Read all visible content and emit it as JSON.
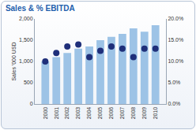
{
  "chart_data": {
    "type": "bar",
    "title": "Sales & % EBITDA",
    "y_label": "Sales '000 USD",
    "categories": [
      "2000",
      "2001",
      "2002",
      "2003",
      "2004",
      "2005",
      "2006",
      "2007",
      "2008",
      "2009",
      "2010"
    ],
    "series": [
      {
        "type": "bar",
        "color": "#9dc3e6",
        "values": [
          1000,
          1100,
          1200,
          1300,
          1350,
          1500,
          1580,
          1650,
          1780,
          1700,
          1850
        ]
      },
      {
        "type": "scatter",
        "axis": "y2",
        "marker": "circle",
        "color": "#1f2f7a",
        "values": [
          10,
          12,
          13.5,
          14,
          11,
          12.5,
          13.5,
          13,
          11,
          13,
          13
        ]
      }
    ],
    "ylim": [
      0,
      2000
    ],
    "yticks": [
      0,
      500,
      {
        "value": 1000,
        "label": "1,000"
      },
      {
        "value": 1500,
        "label": "1,500"
      },
      {
        "value": 2000,
        "label": "2,000"
      }
    ],
    "y2lim": [
      0,
      20
    ],
    "y2ticks": [
      {
        "value": 0,
        "label": "0.0%"
      },
      {
        "value": 5,
        "label": "5.0%"
      },
      {
        "value": 10,
        "label": "10.0%"
      },
      {
        "value": 15,
        "label": "15.0%"
      },
      {
        "value": 20,
        "label": "20.0%"
      }
    ],
    "grid": false,
    "legend": "none"
  }
}
